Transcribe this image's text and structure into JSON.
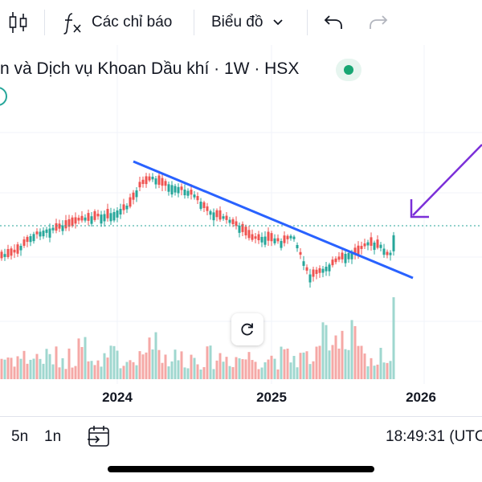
{
  "toolbar": {
    "indicators_label": "Các chỉ báo",
    "chart_type_label": "Biểu đồ"
  },
  "legend": {
    "symbol_title": "n và Dịch vụ Khoan Dầu khí · 1W · HSX"
  },
  "x_axis": {
    "labels": [
      "2024",
      "2025",
      "2026"
    ]
  },
  "bottom_bar": {
    "range_5d": "5n",
    "range_1d": "1n",
    "clock": "18:49:31 (UTC"
  },
  "colors": {
    "up": "#26a69a",
    "down": "#ef5350",
    "trendline": "#2962ff",
    "arrow": "#7b2fd8",
    "live": "#17a673"
  },
  "icons": {
    "candles": "candlestick-icon",
    "fx": "fx-icon",
    "dropdown": "chevron-down-icon",
    "undo": "undo-icon",
    "redo": "redo-icon",
    "reset": "reset-icon",
    "date_range": "date-range-icon"
  }
}
